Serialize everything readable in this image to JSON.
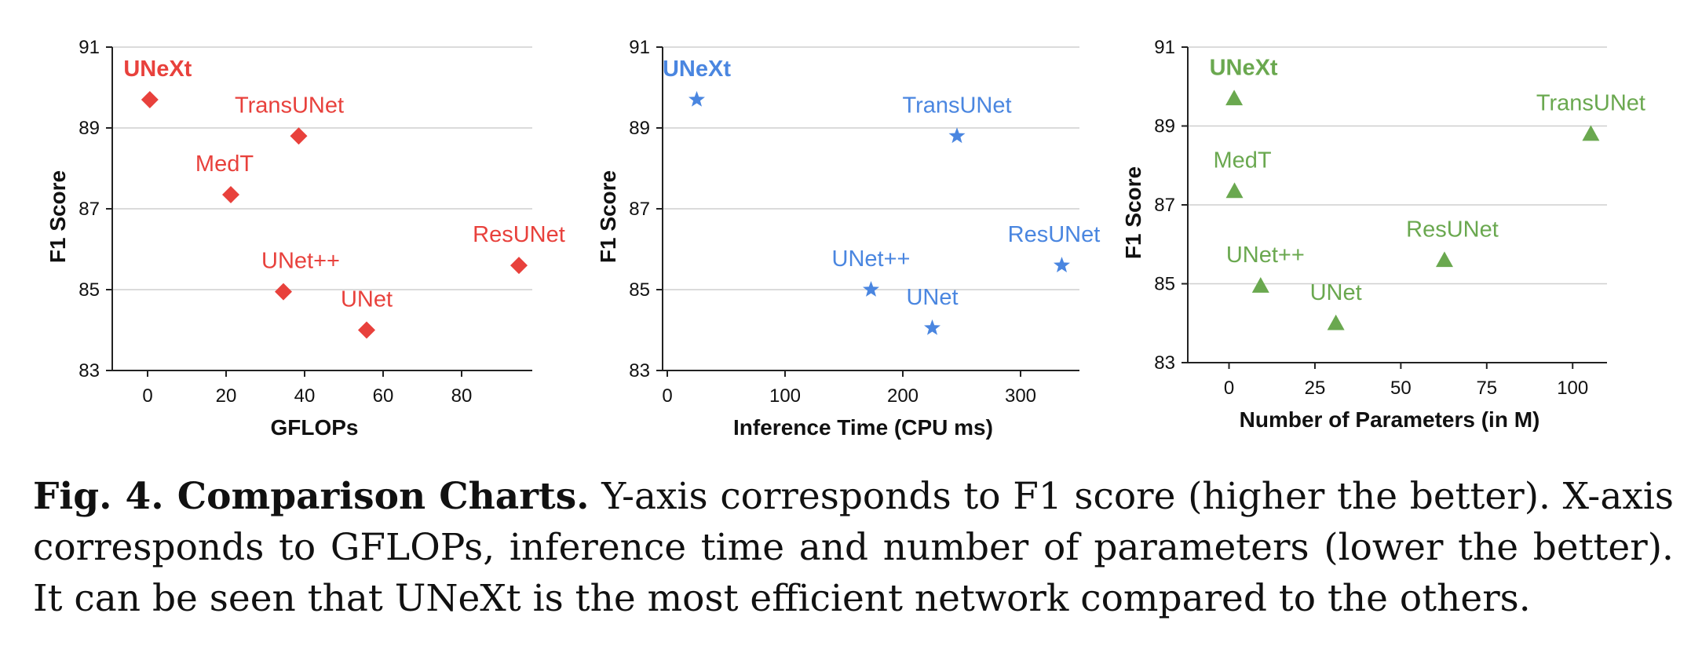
{
  "chart_data": [
    {
      "type": "scatter",
      "marker": "diamond",
      "color": "#e8413c",
      "xlabel": "GFLOPs",
      "ylabel": "F1 Score",
      "xlim": [
        -9,
        98
      ],
      "ylim": [
        83,
        91
      ],
      "xticks": [
        0,
        20,
        40,
        60,
        80
      ],
      "yticks": [
        83,
        85,
        87,
        89,
        91
      ],
      "grid": "horizontal",
      "points": [
        {
          "label": "UNeXt",
          "x": 0.57,
          "y": 89.7,
          "highlight": true
        },
        {
          "label": "TransUNet",
          "x": 38.5,
          "y": 88.8
        },
        {
          "label": "MedT",
          "x": 21.2,
          "y": 87.35
        },
        {
          "label": "ResUNet",
          "x": 94.6,
          "y": 85.6
        },
        {
          "label": "UNet++",
          "x": 34.6,
          "y": 84.95
        },
        {
          "label": "UNet",
          "x": 55.8,
          "y": 84.0
        }
      ]
    },
    {
      "type": "scatter",
      "marker": "star",
      "color": "#4a86e0",
      "xlabel": "Inference Time (CPU ms)",
      "ylabel": "F1 Score",
      "xlim": [
        -4,
        350
      ],
      "ylim": [
        83,
        91
      ],
      "xticks": [
        0,
        100,
        200,
        300
      ],
      "yticks": [
        83,
        85,
        87,
        89,
        91
      ],
      "grid": "horizontal",
      "points": [
        {
          "label": "UNeXt",
          "x": 25,
          "y": 89.7,
          "highlight": true
        },
        {
          "label": "TransUNet",
          "x": 246,
          "y": 88.8
        },
        {
          "label": "ResUNet",
          "x": 335,
          "y": 85.6
        },
        {
          "label": "UNet++",
          "x": 173,
          "y": 85.0
        },
        {
          "label": "UNet",
          "x": 225,
          "y": 84.05
        }
      ]
    },
    {
      "type": "scatter",
      "marker": "triangle",
      "color": "#6aa84f",
      "xlabel": "Number of Parameters (in M)",
      "ylabel": "F1 Score",
      "xlim": [
        -12,
        110
      ],
      "ylim": [
        83,
        91
      ],
      "xticks": [
        0,
        25,
        50,
        75,
        100
      ],
      "yticks": [
        83,
        85,
        87,
        89,
        91
      ],
      "grid": "horizontal",
      "points": [
        {
          "label": "UNeXt",
          "x": 1.5,
          "y": 89.7,
          "highlight": true
        },
        {
          "label": "TransUNet",
          "x": 105.3,
          "y": 88.8
        },
        {
          "label": "MedT",
          "x": 1.6,
          "y": 87.35
        },
        {
          "label": "ResUNet",
          "x": 62.7,
          "y": 85.6
        },
        {
          "label": "UNet++",
          "x": 9.2,
          "y": 84.95
        },
        {
          "label": "UNet",
          "x": 31.1,
          "y": 84.0
        }
      ]
    }
  ],
  "caption": {
    "label": "Fig. 4. Comparison Charts.",
    "text": " Y-axis corresponds to F1 score (higher the better). X-axis corresponds to GFLOPs, inference time and number of parameters (lower the better). It can be seen that UNeXt is the most efficient network compared to the others."
  }
}
